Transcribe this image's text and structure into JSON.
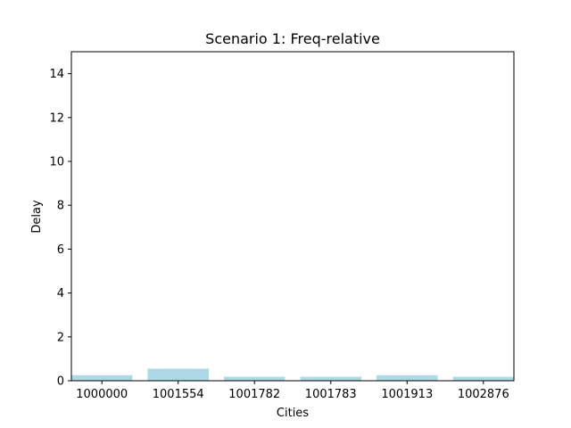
{
  "chart_data": {
    "type": "bar",
    "title": "Scenario 1: Freq-relative",
    "xlabel": "Cities",
    "ylabel": "Delay",
    "categories": [
      "1000000",
      "1001554",
      "1001782",
      "1001783",
      "1001913",
      "1002876"
    ],
    "values": [
      0.25,
      0.55,
      0.18,
      0.18,
      0.25,
      0.18
    ],
    "ylim": [
      0,
      15
    ],
    "yticks": [
      0,
      2,
      4,
      6,
      8,
      10,
      12,
      14
    ],
    "grid": false,
    "legend": "none",
    "colors": {
      "bar": "#add8e6",
      "axes": "#000000",
      "background": "#ffffff"
    }
  }
}
